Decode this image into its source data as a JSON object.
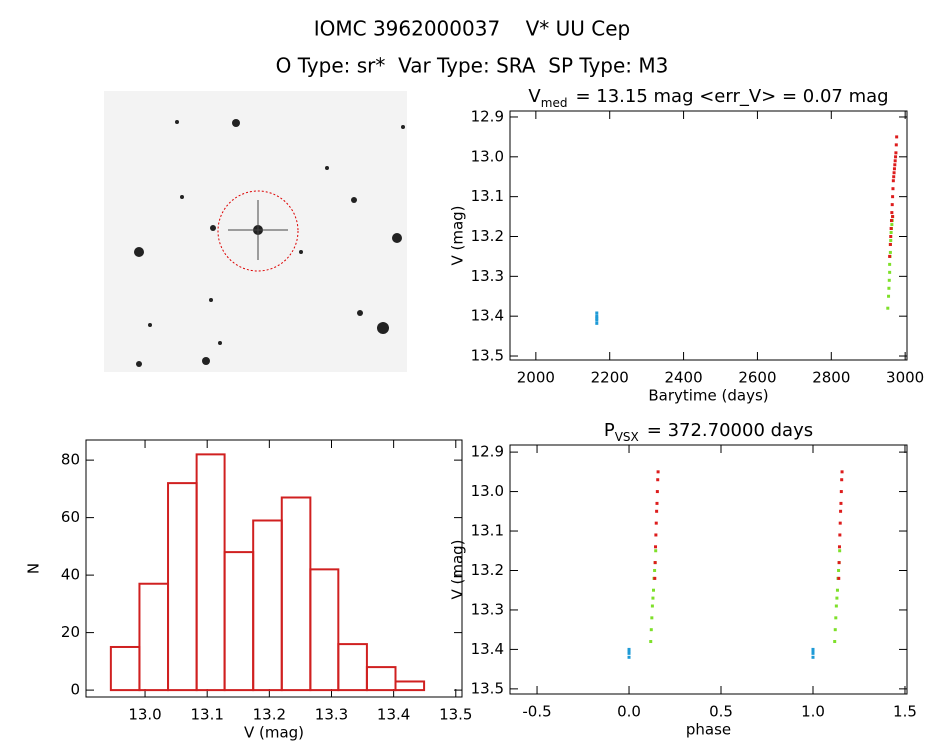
{
  "header": {
    "title": "IOMC 3962000037    V* UU Cep",
    "subtitle": "O Type: sr*  Var Type: SRA  SP Type: M3"
  },
  "chart_data": [
    {
      "type": "scatter",
      "title": "V",
      "title_sub": "med",
      "title_rest": "= 13.15 mag <err_V> = 0.07 mag",
      "x_label": "Barytime (days)",
      "y_label": "V (mag)",
      "xlim": [
        1930,
        3005
      ],
      "xticks": [
        2000,
        2200,
        2400,
        2600,
        2800,
        3000
      ],
      "ylim": [
        13.51,
        12.885
      ],
      "yticks": [
        12.9,
        {
          "value": 13,
          "label": "13.0"
        },
        13.1,
        13.2,
        13.3,
        13.4,
        13.5
      ],
      "series": [
        {
          "color": "#1e9ad6",
          "x": [
            2165,
            2165,
            2165,
            2165,
            2165
          ],
          "values": [
            13.392,
            13.4,
            13.405,
            13.41,
            13.418
          ]
        },
        {
          "color": "#7ee02a",
          "x": [
            2953,
            2955,
            2956,
            2957,
            2958,
            2958,
            2959,
            2960,
            2960,
            2961,
            2962,
            2963,
            2964,
            2965,
            2966
          ],
          "values": [
            13.38,
            13.35,
            13.33,
            13.31,
            13.29,
            13.27,
            13.25,
            13.24,
            13.22,
            13.21,
            13.19,
            13.18,
            13.17,
            13.16,
            13.15
          ]
        },
        {
          "color": "#dd1c1c",
          "x": [
            2958,
            2960,
            2961,
            2962,
            2963,
            2964,
            2965,
            2966,
            2967,
            2968,
            2969,
            2970,
            2971,
            2972,
            2973,
            2974,
            2975,
            2976,
            2977,
            2966
          ],
          "values": [
            13.25,
            13.22,
            13.2,
            13.18,
            13.16,
            13.14,
            13.12,
            13.1,
            13.08,
            13.06,
            13.05,
            13.04,
            13.03,
            13.02,
            13.01,
            13.0,
            12.99,
            12.97,
            12.95,
            13.15
          ]
        }
      ]
    },
    {
      "type": "histogram",
      "x_label": "V (mag)",
      "y_label": "N",
      "color": "#d02020",
      "bins": [
        12.945,
        12.991,
        13.037,
        13.083,
        13.128,
        13.174,
        13.22,
        13.266,
        13.311,
        13.357,
        13.403,
        13.449
      ],
      "values": [
        15,
        37,
        72,
        82,
        48,
        59,
        67,
        42,
        16,
        8,
        3
      ],
      "xlim": [
        12.905,
        13.51
      ],
      "xticks": [
        {
          "value": 13,
          "label": "13.0"
        },
        13.1,
        13.2,
        13.3,
        13.4,
        13.5
      ],
      "ylim": [
        -2.4,
        87
      ],
      "yticks": [
        0,
        20,
        40,
        60,
        80
      ]
    },
    {
      "type": "scatter",
      "title": "P",
      "title_sub": "VSX",
      "title_rest": "= 372.70000 days",
      "x_label": "phase",
      "y_label": "V (mag)",
      "xlim": [
        -0.647,
        1.511
      ],
      "xticks": [
        -0.5,
        {
          "value": 0,
          "label": "0.0"
        },
        0.5,
        {
          "value": 1,
          "label": "1.0"
        },
        1.5
      ],
      "ylim": [
        13.513,
        12.882
      ],
      "yticks": [
        12.9,
        {
          "value": 13,
          "label": "13.0"
        },
        13.1,
        13.2,
        13.3,
        13.4,
        13.5
      ],
      "series": [
        {
          "color": "#1e9ad6",
          "x": [
            0,
            0,
            0,
            0,
            1,
            1,
            1,
            1
          ],
          "values": [
            13.4,
            13.405,
            13.41,
            13.42,
            13.4,
            13.405,
            13.41,
            13.42
          ]
        },
        {
          "color": "#7ee02a",
          "x": [
            0.118,
            0.121,
            0.124,
            0.127,
            0.13,
            0.133,
            0.136,
            0.139,
            0.142,
            0.145,
            1.118,
            1.121,
            1.124,
            1.127,
            1.13,
            1.133,
            1.136,
            1.139,
            1.142,
            1.145
          ],
          "values": [
            13.38,
            13.35,
            13.32,
            13.29,
            13.27,
            13.25,
            13.22,
            13.2,
            13.18,
            13.15,
            13.38,
            13.35,
            13.32,
            13.29,
            13.27,
            13.25,
            13.22,
            13.2,
            13.18,
            13.15
          ]
        },
        {
          "color": "#dd1c1c",
          "x": [
            0.14,
            0.142,
            0.144,
            0.146,
            0.148,
            0.15,
            0.152,
            0.154,
            0.156,
            0.158,
            1.14,
            1.142,
            1.144,
            1.146,
            1.148,
            1.15,
            1.152,
            1.154,
            1.156,
            1.158
          ],
          "values": [
            13.22,
            13.18,
            13.14,
            13.11,
            13.08,
            13.05,
            13.03,
            13.0,
            12.97,
            12.95,
            13.22,
            13.18,
            13.14,
            13.11,
            13.08,
            13.05,
            13.03,
            13.0,
            12.97,
            12.95
          ]
        }
      ]
    }
  ]
}
